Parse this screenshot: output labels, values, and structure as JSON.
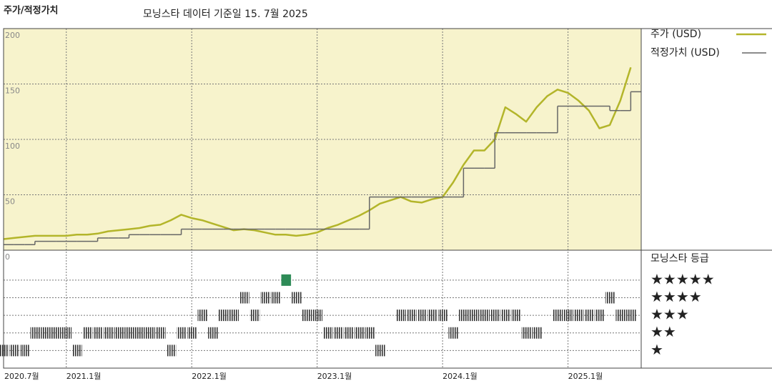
{
  "chart_data": {
    "type": "line",
    "title": "주가/적정가치",
    "subtitle": "모닝스타 데이터 기준일 15. 7월 2025",
    "x": [
      "2020-07",
      "2020-08",
      "2020-09",
      "2020-10",
      "2020-11",
      "2020-12",
      "2021-01",
      "2021-02",
      "2021-03",
      "2021-04",
      "2021-05",
      "2021-06",
      "2021-07",
      "2021-08",
      "2021-09",
      "2021-10",
      "2021-11",
      "2021-12",
      "2022-01",
      "2022-02",
      "2022-03",
      "2022-04",
      "2022-05",
      "2022-06",
      "2022-07",
      "2022-08",
      "2022-09",
      "2022-10",
      "2022-11",
      "2022-12",
      "2023-01",
      "2023-02",
      "2023-03",
      "2023-04",
      "2023-05",
      "2023-06",
      "2023-07",
      "2023-08",
      "2023-09",
      "2023-10",
      "2023-11",
      "2023-12",
      "2024-01",
      "2024-02",
      "2024-03",
      "2024-04",
      "2024-05",
      "2024-06",
      "2024-07",
      "2024-08",
      "2024-09",
      "2024-10",
      "2024-11",
      "2024-12",
      "2025-01",
      "2025-02",
      "2025-03",
      "2025-04",
      "2025-05",
      "2025-06",
      "2025-07"
    ],
    "xlim": [
      "2020-07",
      "2025-08"
    ],
    "xticks": [
      {
        "value": "2020-07",
        "label": "2020.7월"
      },
      {
        "value": "2021-01",
        "label": "2021.1월"
      },
      {
        "value": "2022-01",
        "label": "2022.1월"
      },
      {
        "value": "2023-01",
        "label": "2023.1월"
      },
      {
        "value": "2024-01",
        "label": "2024.1월"
      },
      {
        "value": "2025-01",
        "label": "2025.1월"
      }
    ],
    "ylim": [
      0,
      200
    ],
    "yticks": [
      0,
      50,
      100,
      150,
      200
    ],
    "grid": true,
    "background": "#f7f3cc",
    "series": [
      {
        "name": "주가 (USD)",
        "color": "#b3b52a",
        "values": [
          10,
          11,
          12,
          13,
          13,
          13,
          13,
          14,
          14,
          15,
          17,
          18,
          19,
          20,
          22,
          23,
          27,
          32,
          29,
          27,
          24,
          21,
          18,
          19,
          18,
          16,
          14,
          14,
          13,
          14,
          16,
          20,
          23,
          27,
          31,
          36,
          42,
          45,
          48,
          44,
          43,
          46,
          48,
          61,
          77,
          90,
          90,
          100,
          129,
          123,
          116,
          129,
          139,
          145,
          142,
          135,
          126,
          110,
          113,
          135,
          165
        ]
      },
      {
        "name": "적정가치 (USD)",
        "color": "#666666",
        "step": true,
        "values": [
          5,
          5,
          5,
          8,
          8,
          8,
          8,
          8,
          8,
          11,
          11,
          11,
          14,
          14,
          14,
          14,
          14,
          19,
          19,
          19,
          19,
          19,
          19,
          19,
          19,
          19,
          19,
          19,
          19,
          19,
          19,
          19,
          19,
          19,
          19,
          48,
          48,
          48,
          48,
          48,
          48,
          48,
          48,
          48,
          74,
          74,
          74,
          106,
          106,
          106,
          106,
          106,
          106,
          130,
          130,
          130,
          130,
          130,
          126,
          126,
          143
        ]
      }
    ],
    "ratings": {
      "title": "모닝스타 등급",
      "ylim": [
        0,
        6.7
      ],
      "yticks": [
        {
          "value": 5,
          "label": "★★★★★"
        },
        {
          "value": 4,
          "label": "★★★★"
        },
        {
          "value": 3,
          "label": "★★★"
        },
        {
          "value": 2,
          "label": "★★"
        },
        {
          "value": 1,
          "label": "★"
        }
      ],
      "colors": [
        "#333333",
        "#333333",
        "#333333",
        "#333333",
        "#2e8b57"
      ],
      "values": [
        1,
        1,
        1,
        2,
        2,
        2,
        2,
        1,
        2,
        2,
        2,
        2,
        2,
        2,
        2,
        2,
        1,
        2,
        2,
        3,
        2,
        3,
        3,
        4,
        3,
        4,
        4,
        5,
        4,
        3,
        3,
        2,
        2,
        2,
        2,
        2,
        1,
        null,
        3,
        3,
        3,
        3,
        3,
        2,
        3,
        3,
        3,
        3,
        3,
        3,
        2,
        2,
        null,
        3,
        3,
        3,
        3,
        3,
        4,
        3,
        3
      ]
    }
  }
}
